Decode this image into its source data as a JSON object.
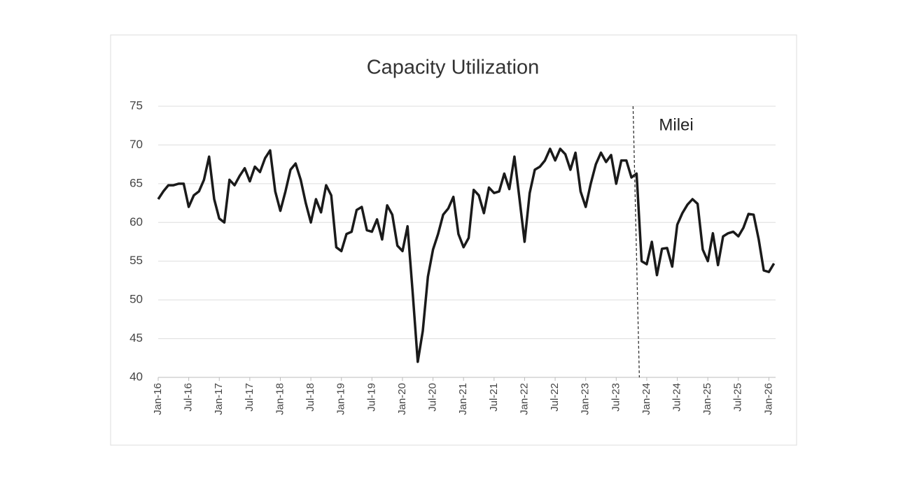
{
  "chart_data": {
    "type": "line",
    "title": "Capacity Utilization",
    "categories": [
      "Jan-16",
      null,
      null,
      null,
      null,
      null,
      "Jul-16",
      null,
      null,
      null,
      null,
      null,
      "Jan-17",
      null,
      null,
      null,
      null,
      null,
      "Jul-17",
      null,
      null,
      null,
      null,
      null,
      "Jan-18",
      null,
      null,
      null,
      null,
      null,
      "Jul-18",
      null,
      null,
      null,
      null,
      null,
      "Jan-19",
      null,
      null,
      null,
      null,
      null,
      "Jul-19",
      null,
      null,
      null,
      null,
      null,
      "Jan-20",
      null,
      null,
      null,
      null,
      null,
      "Jul-20",
      null,
      null,
      null,
      null,
      null,
      "Jan-21",
      null,
      null,
      null,
      null,
      null,
      "Jul-21",
      null,
      null,
      null,
      null,
      null,
      "Jan-22",
      null,
      null,
      null,
      null,
      null,
      "Jul-22",
      null,
      null,
      null,
      null,
      null,
      "Jan-23",
      null,
      null,
      null,
      null,
      null,
      "Jul-23",
      null,
      null,
      null,
      null,
      null,
      "Jan-24",
      null,
      null,
      null,
      null,
      null,
      "Jul-24",
      null,
      null,
      null,
      null,
      null,
      "Jan-25",
      null,
      null,
      null,
      null,
      null,
      "Jul-25",
      null,
      null,
      null,
      null,
      null,
      "Jan-26",
      null
    ],
    "series": [
      {
        "color": "#1a1a1a",
        "values": [
          63,
          64,
          64.8,
          64.8,
          65,
          65,
          62,
          63.5,
          64,
          65.5,
          68.5,
          63,
          60.5,
          60,
          65.5,
          64.8,
          66,
          67,
          65.3,
          67.2,
          66.5,
          68.3,
          69.3,
          64,
          61.5,
          64,
          66.8,
          67.6,
          65.5,
          62.5,
          60,
          63,
          61.3,
          64.8,
          63.5,
          56.8,
          56.3,
          58.5,
          58.8,
          61.6,
          62,
          59,
          58.8,
          60.4,
          57.8,
          62.2,
          61,
          57,
          56.3,
          59.5,
          51,
          42,
          46,
          53,
          56.5,
          58.5,
          61,
          61.8,
          63.3,
          58.5,
          56.8,
          58,
          64.2,
          63.5,
          61.2,
          64.5,
          63.8,
          64,
          66.3,
          64.3,
          68.5,
          63,
          57.5,
          63.8,
          66.8,
          67.2,
          68,
          69.5,
          68,
          69.5,
          68.8,
          66.8,
          69,
          64,
          62,
          65,
          67.5,
          69,
          67.8,
          68.7,
          65,
          68,
          68,
          65.8,
          66.3,
          55,
          54.6,
          57.5,
          53.2,
          56.6,
          56.7,
          54.3,
          59.7,
          61.2,
          62.3,
          63,
          62.4,
          56.5,
          55,
          58.6,
          54.5,
          58.2,
          58.6,
          58.8,
          58.2,
          59.3,
          61.1,
          61,
          57.8,
          53.8,
          53.6,
          54.7
        ]
      }
    ],
    "ylim": [
      40,
      75
    ],
    "yticks": [
      40,
      45,
      50,
      55,
      60,
      65,
      70,
      75
    ],
    "grid": true,
    "annotations": [
      {
        "text": "Milei",
        "x_index": 94
      }
    ]
  }
}
